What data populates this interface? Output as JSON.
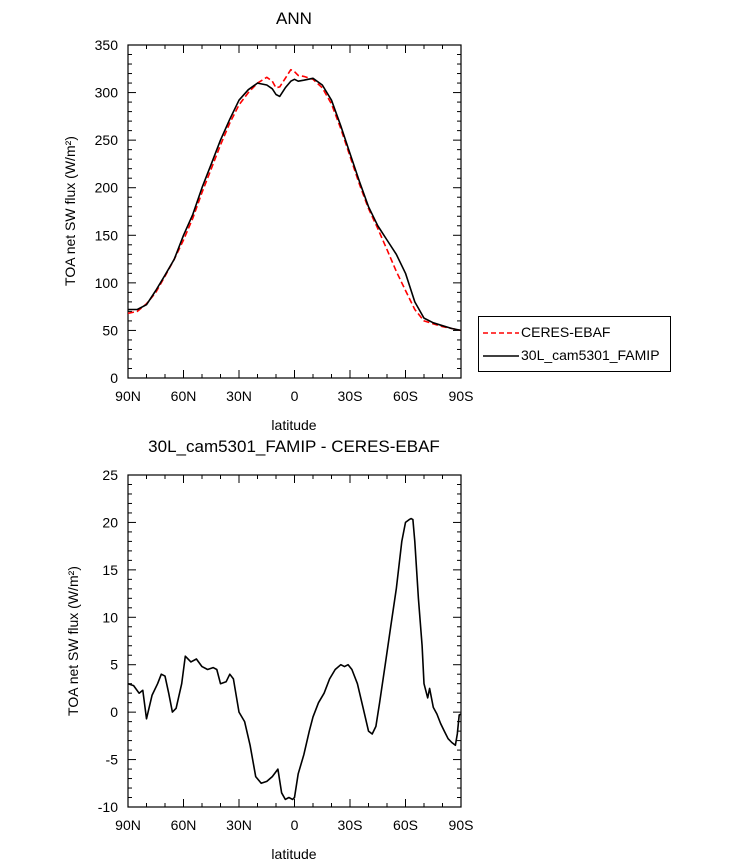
{
  "chart_data": [
    {
      "type": "line",
      "title": "ANN",
      "xlabel": "latitude",
      "ylabel": "TOA net SW flux (W/m²)",
      "ylim": [
        0,
        350
      ],
      "yticks": [
        0,
        50,
        100,
        150,
        200,
        250,
        300,
        350
      ],
      "xlim": [
        90,
        -90
      ],
      "xticks": [
        90,
        60,
        30,
        0,
        -30,
        -60,
        -90
      ],
      "xtick_labels": [
        "90N",
        "60N",
        "30N",
        "0",
        "30S",
        "60S",
        "90S"
      ],
      "legend": "outside-right",
      "series": [
        {
          "name": "CERES-EBAF",
          "color": "#ff0000",
          "dash": "dashed",
          "x": [
            90,
            85,
            80,
            75,
            70,
            65,
            60,
            55,
            50,
            45,
            40,
            35,
            30,
            25,
            20,
            15,
            12,
            10,
            8,
            5,
            2,
            0,
            -2,
            -5,
            -10,
            -15,
            -20,
            -25,
            -30,
            -35,
            -40,
            -45,
            -50,
            -55,
            -60,
            -65,
            -70,
            -75,
            -80,
            -85,
            -90
          ],
          "y": [
            68,
            70,
            78,
            90,
            107,
            125,
            145,
            168,
            195,
            220,
            245,
            268,
            287,
            300,
            310,
            316,
            312,
            305,
            306,
            315,
            324,
            322,
            318,
            317,
            314,
            305,
            288,
            262,
            233,
            204,
            178,
            157,
            135,
            112,
            92,
            72,
            60,
            57,
            54,
            52,
            50
          ]
        },
        {
          "name": "30L_cam5301_FAMIP",
          "color": "#000000",
          "dash": "solid",
          "x": [
            90,
            85,
            80,
            75,
            70,
            65,
            60,
            55,
            50,
            45,
            40,
            35,
            30,
            25,
            20,
            15,
            12,
            10,
            8,
            5,
            2,
            0,
            -2,
            -5,
            -10,
            -15,
            -20,
            -25,
            -30,
            -35,
            -40,
            -45,
            -50,
            -55,
            -60,
            -65,
            -70,
            -75,
            -80,
            -85,
            -90
          ],
          "y": [
            72,
            72,
            77,
            92,
            108,
            125,
            150,
            172,
            200,
            225,
            250,
            272,
            292,
            303,
            310,
            308,
            304,
            298,
            296,
            305,
            312,
            314,
            312,
            313,
            315,
            308,
            292,
            265,
            236,
            207,
            180,
            160,
            145,
            130,
            110,
            80,
            63,
            58,
            55,
            52,
            50
          ]
        }
      ]
    },
    {
      "type": "line",
      "title": "30L_cam5301_FAMIP - CERES-EBAF",
      "xlabel": "latitude",
      "ylabel": "TOA net SW flux (W/m²)",
      "ylim": [
        -10,
        25
      ],
      "yticks": [
        -10,
        -5,
        0,
        5,
        10,
        15,
        20,
        25
      ],
      "xlim": [
        90,
        -90
      ],
      "xticks": [
        90,
        60,
        30,
        0,
        -30,
        -60,
        -90
      ],
      "xtick_labels": [
        "90N",
        "60N",
        "30N",
        "0",
        "30S",
        "60S",
        "90S"
      ],
      "series": [
        {
          "color": "#000000",
          "dash": "solid",
          "x": [
            90,
            87,
            84,
            82,
            80,
            77,
            74,
            72,
            70,
            68,
            66,
            64,
            61,
            59,
            56,
            53,
            50,
            47,
            44,
            42,
            40,
            37,
            35,
            33,
            30,
            27,
            24,
            21,
            18,
            15,
            12,
            9,
            7,
            5,
            3,
            1,
            0,
            -2,
            -5,
            -8,
            -10,
            -13,
            -16,
            -19,
            -22,
            -25,
            -27,
            -29,
            -31,
            -34,
            -37,
            -40,
            -42,
            -44,
            -46,
            -49,
            -52,
            -55,
            -58,
            -60,
            -62,
            -63,
            -64,
            -65,
            -67,
            -69,
            -70,
            -72,
            -73,
            -75,
            -77,
            -79,
            -81,
            -83,
            -85,
            -87,
            -88,
            -89,
            -90
          ],
          "y": [
            3,
            2.8,
            2,
            2.3,
            -0.7,
            1.8,
            3,
            4,
            3.8,
            2,
            0,
            0.4,
            3,
            5.9,
            5.3,
            5.6,
            4.8,
            4.5,
            4.7,
            4.5,
            3,
            3.2,
            4,
            3.5,
            0,
            -1,
            -3.5,
            -6.8,
            -7.5,
            -7.3,
            -6.8,
            -6,
            -8.5,
            -9.2,
            -9,
            -9.2,
            -9,
            -6.5,
            -4.5,
            -2,
            -0.5,
            1,
            2,
            3.5,
            4.5,
            5,
            4.8,
            5,
            4.5,
            3,
            0.5,
            -2,
            -2.3,
            -1.5,
            1,
            5,
            9,
            13,
            18,
            20,
            20.3,
            20.4,
            20.3,
            18,
            12,
            7,
            3,
            1.5,
            2.5,
            0.5,
            -0.2,
            -1.2,
            -2,
            -2.8,
            -3.2,
            -3.5,
            -2.3,
            -0.3,
            -0.2
          ]
        }
      ]
    }
  ]
}
